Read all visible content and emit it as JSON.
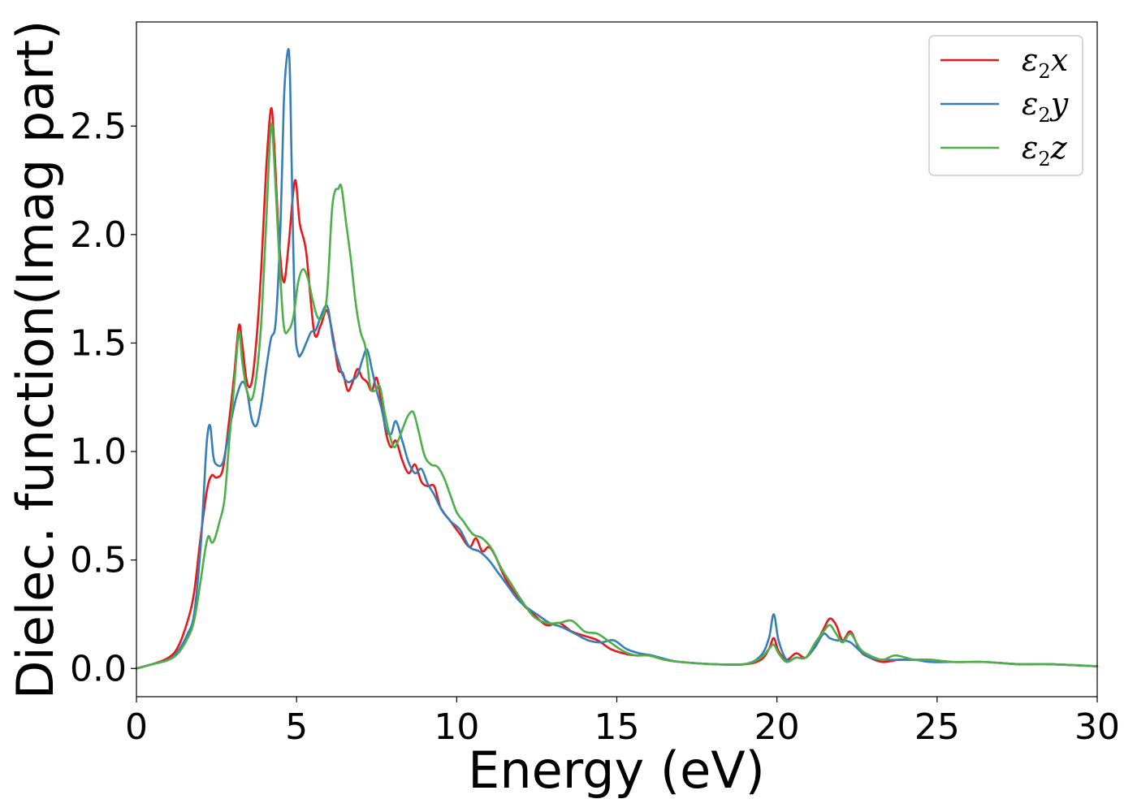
{
  "chart_data": {
    "type": "line",
    "title": "",
    "xlabel": "Energy (eV)",
    "ylabel": "Dielec. function(Imag part)",
    "xlim": [
      0,
      30
    ],
    "ylim": [
      -0.13,
      2.98
    ],
    "xticks": [
      "0",
      "5",
      "10",
      "15",
      "20",
      "25",
      "30"
    ],
    "yticks": [
      "0.0",
      "0.5",
      "1.0",
      "1.5",
      "2.0",
      "2.5"
    ],
    "grid": false,
    "legend_position": "top-right",
    "series": [
      {
        "name": "ε2x",
        "legend": {
          "base": "ε",
          "sub": "2",
          "var": "x"
        },
        "color": "#e41a1c",
        "x": [
          0,
          0.5,
          1.0,
          1.3,
          1.6,
          1.8,
          2.0,
          2.2,
          2.35,
          2.5,
          2.7,
          2.9,
          3.05,
          3.2,
          3.3,
          3.45,
          3.6,
          3.75,
          3.9,
          4.05,
          4.2,
          4.3,
          4.45,
          4.6,
          4.75,
          4.95,
          5.1,
          5.3,
          5.55,
          5.75,
          5.95,
          6.15,
          6.3,
          6.45,
          6.6,
          6.75,
          6.9,
          7.05,
          7.2,
          7.35,
          7.5,
          7.65,
          7.8,
          7.95,
          8.1,
          8.3,
          8.5,
          8.7,
          8.9,
          9.1,
          9.3,
          9.5,
          9.8,
          10.1,
          10.4,
          10.6,
          10.8,
          11.0,
          11.2,
          11.5,
          11.8,
          12.1,
          12.4,
          12.8,
          13.2,
          13.6,
          14.0,
          14.4,
          14.8,
          15.2,
          15.6,
          16.0,
          16.5,
          17.0,
          18.0,
          19.0,
          19.5,
          19.75,
          19.9,
          20.05,
          20.3,
          20.6,
          20.9,
          21.2,
          21.45,
          21.65,
          21.85,
          22.05,
          22.3,
          22.6,
          22.9,
          23.3,
          23.8,
          24.3,
          24.8,
          25.5,
          26.5,
          27.5,
          28.5,
          30.0
        ],
        "y": [
          0.0,
          0.02,
          0.05,
          0.1,
          0.22,
          0.35,
          0.6,
          0.82,
          0.89,
          0.88,
          0.92,
          1.15,
          1.35,
          1.58,
          1.5,
          1.32,
          1.32,
          1.52,
          1.85,
          2.3,
          2.58,
          2.42,
          1.98,
          1.78,
          1.95,
          2.25,
          2.05,
          1.92,
          1.55,
          1.58,
          1.65,
          1.52,
          1.38,
          1.36,
          1.28,
          1.32,
          1.38,
          1.34,
          1.32,
          1.28,
          1.34,
          1.22,
          1.08,
          1.02,
          1.05,
          0.96,
          0.9,
          0.94,
          0.86,
          0.84,
          0.84,
          0.74,
          0.68,
          0.62,
          0.56,
          0.6,
          0.54,
          0.56,
          0.52,
          0.42,
          0.35,
          0.29,
          0.25,
          0.2,
          0.21,
          0.17,
          0.15,
          0.13,
          0.09,
          0.07,
          0.06,
          0.06,
          0.04,
          0.03,
          0.02,
          0.02,
          0.04,
          0.09,
          0.14,
          0.08,
          0.04,
          0.07,
          0.05,
          0.11,
          0.18,
          0.23,
          0.2,
          0.13,
          0.17,
          0.08,
          0.05,
          0.03,
          0.04,
          0.04,
          0.04,
          0.03,
          0.03,
          0.02,
          0.02,
          0.01
        ]
      },
      {
        "name": "ε2y",
        "legend": {
          "base": "ε",
          "sub": "2",
          "var": "y"
        },
        "color": "#377eb8",
        "x": [
          0,
          0.5,
          1.0,
          1.3,
          1.6,
          1.8,
          2.0,
          2.1,
          2.2,
          2.3,
          2.4,
          2.5,
          2.7,
          2.9,
          3.1,
          3.3,
          3.45,
          3.6,
          3.75,
          3.9,
          4.05,
          4.2,
          4.35,
          4.5,
          4.6,
          4.7,
          4.78,
          4.85,
          4.95,
          5.05,
          5.15,
          5.3,
          5.45,
          5.6,
          5.75,
          5.9,
          6.0,
          6.15,
          6.3,
          6.45,
          6.6,
          6.75,
          6.9,
          7.05,
          7.2,
          7.35,
          7.5,
          7.65,
          7.8,
          7.95,
          8.1,
          8.3,
          8.5,
          8.7,
          8.9,
          9.1,
          9.3,
          9.5,
          9.8,
          10.1,
          10.4,
          10.7,
          11.0,
          11.3,
          11.6,
          11.9,
          12.2,
          12.5,
          12.9,
          13.3,
          13.7,
          14.1,
          14.5,
          14.9,
          15.3,
          15.7,
          16.1,
          16.6,
          17.0,
          18.0,
          19.0,
          19.5,
          19.75,
          19.9,
          20.05,
          20.3,
          20.6,
          20.9,
          21.2,
          21.45,
          21.65,
          21.85,
          22.05,
          22.3,
          22.6,
          22.9,
          23.3,
          23.8,
          24.3,
          24.8,
          25.5,
          26.5,
          27.5,
          28.5,
          30.0
        ],
        "y": [
          0.0,
          0.02,
          0.04,
          0.08,
          0.16,
          0.25,
          0.55,
          0.8,
          1.05,
          1.12,
          0.98,
          0.94,
          0.95,
          1.1,
          1.24,
          1.32,
          1.28,
          1.15,
          1.12,
          1.22,
          1.38,
          1.52,
          1.6,
          2.05,
          2.6,
          2.82,
          2.8,
          2.3,
          1.6,
          1.45,
          1.45,
          1.5,
          1.55,
          1.56,
          1.62,
          1.67,
          1.65,
          1.5,
          1.42,
          1.35,
          1.32,
          1.33,
          1.35,
          1.42,
          1.47,
          1.38,
          1.28,
          1.2,
          1.1,
          1.08,
          1.14,
          1.05,
          0.95,
          0.9,
          0.92,
          0.85,
          0.8,
          0.74,
          0.68,
          0.64,
          0.56,
          0.54,
          0.5,
          0.44,
          0.38,
          0.32,
          0.28,
          0.25,
          0.21,
          0.19,
          0.16,
          0.13,
          0.12,
          0.13,
          0.09,
          0.07,
          0.06,
          0.04,
          0.03,
          0.02,
          0.02,
          0.06,
          0.14,
          0.25,
          0.13,
          0.04,
          0.05,
          0.05,
          0.1,
          0.16,
          0.14,
          0.13,
          0.13,
          0.12,
          0.08,
          0.05,
          0.04,
          0.04,
          0.04,
          0.03,
          0.03,
          0.03,
          0.02,
          0.02,
          0.01
        ]
      },
      {
        "name": "ε2z",
        "legend": {
          "base": "ε",
          "sub": "2",
          "var": "z"
        },
        "color": "#4daf4a",
        "x": [
          0,
          0.5,
          1.0,
          1.3,
          1.6,
          1.8,
          2.0,
          2.15,
          2.25,
          2.35,
          2.45,
          2.6,
          2.75,
          2.9,
          3.05,
          3.2,
          3.3,
          3.45,
          3.6,
          3.75,
          3.9,
          4.05,
          4.2,
          4.3,
          4.45,
          4.6,
          4.75,
          4.9,
          5.05,
          5.2,
          5.35,
          5.5,
          5.65,
          5.8,
          5.95,
          6.1,
          6.2,
          6.3,
          6.4,
          6.55,
          6.7,
          6.85,
          7.0,
          7.15,
          7.3,
          7.45,
          7.6,
          7.75,
          7.9,
          8.05,
          8.2,
          8.35,
          8.5,
          8.65,
          8.8,
          9.0,
          9.2,
          9.4,
          9.6,
          9.8,
          10.0,
          10.2,
          10.5,
          10.8,
          11.1,
          11.4,
          11.7,
          12.0,
          12.4,
          12.8,
          13.2,
          13.6,
          14.0,
          14.4,
          14.8,
          15.2,
          15.6,
          16.0,
          16.5,
          17.0,
          18.0,
          19.0,
          19.5,
          19.75,
          19.9,
          20.05,
          20.3,
          20.6,
          20.9,
          21.2,
          21.45,
          21.65,
          21.85,
          22.05,
          22.3,
          22.6,
          22.9,
          23.3,
          23.7,
          24.3,
          24.8,
          25.5,
          26.5,
          27.5,
          28.5,
          30.0
        ],
        "y": [
          0.0,
          0.02,
          0.04,
          0.07,
          0.14,
          0.22,
          0.4,
          0.55,
          0.61,
          0.58,
          0.6,
          0.68,
          0.78,
          1.05,
          1.3,
          1.55,
          1.42,
          1.28,
          1.24,
          1.35,
          1.6,
          2.05,
          2.5,
          2.35,
          1.92,
          1.58,
          1.56,
          1.62,
          1.78,
          1.84,
          1.8,
          1.7,
          1.62,
          1.62,
          1.72,
          2.1,
          2.2,
          2.21,
          2.22,
          2.05,
          1.88,
          1.68,
          1.55,
          1.48,
          1.3,
          1.28,
          1.3,
          1.18,
          1.08,
          1.02,
          1.06,
          1.12,
          1.17,
          1.18,
          1.1,
          0.98,
          0.94,
          0.93,
          0.88,
          0.8,
          0.72,
          0.68,
          0.62,
          0.6,
          0.55,
          0.46,
          0.39,
          0.32,
          0.24,
          0.21,
          0.21,
          0.22,
          0.17,
          0.16,
          0.12,
          0.08,
          0.06,
          0.06,
          0.04,
          0.03,
          0.02,
          0.02,
          0.05,
          0.09,
          0.11,
          0.07,
          0.03,
          0.05,
          0.05,
          0.12,
          0.17,
          0.2,
          0.16,
          0.12,
          0.16,
          0.09,
          0.06,
          0.04,
          0.06,
          0.04,
          0.04,
          0.03,
          0.03,
          0.02,
          0.02,
          0.01
        ]
      }
    ]
  }
}
